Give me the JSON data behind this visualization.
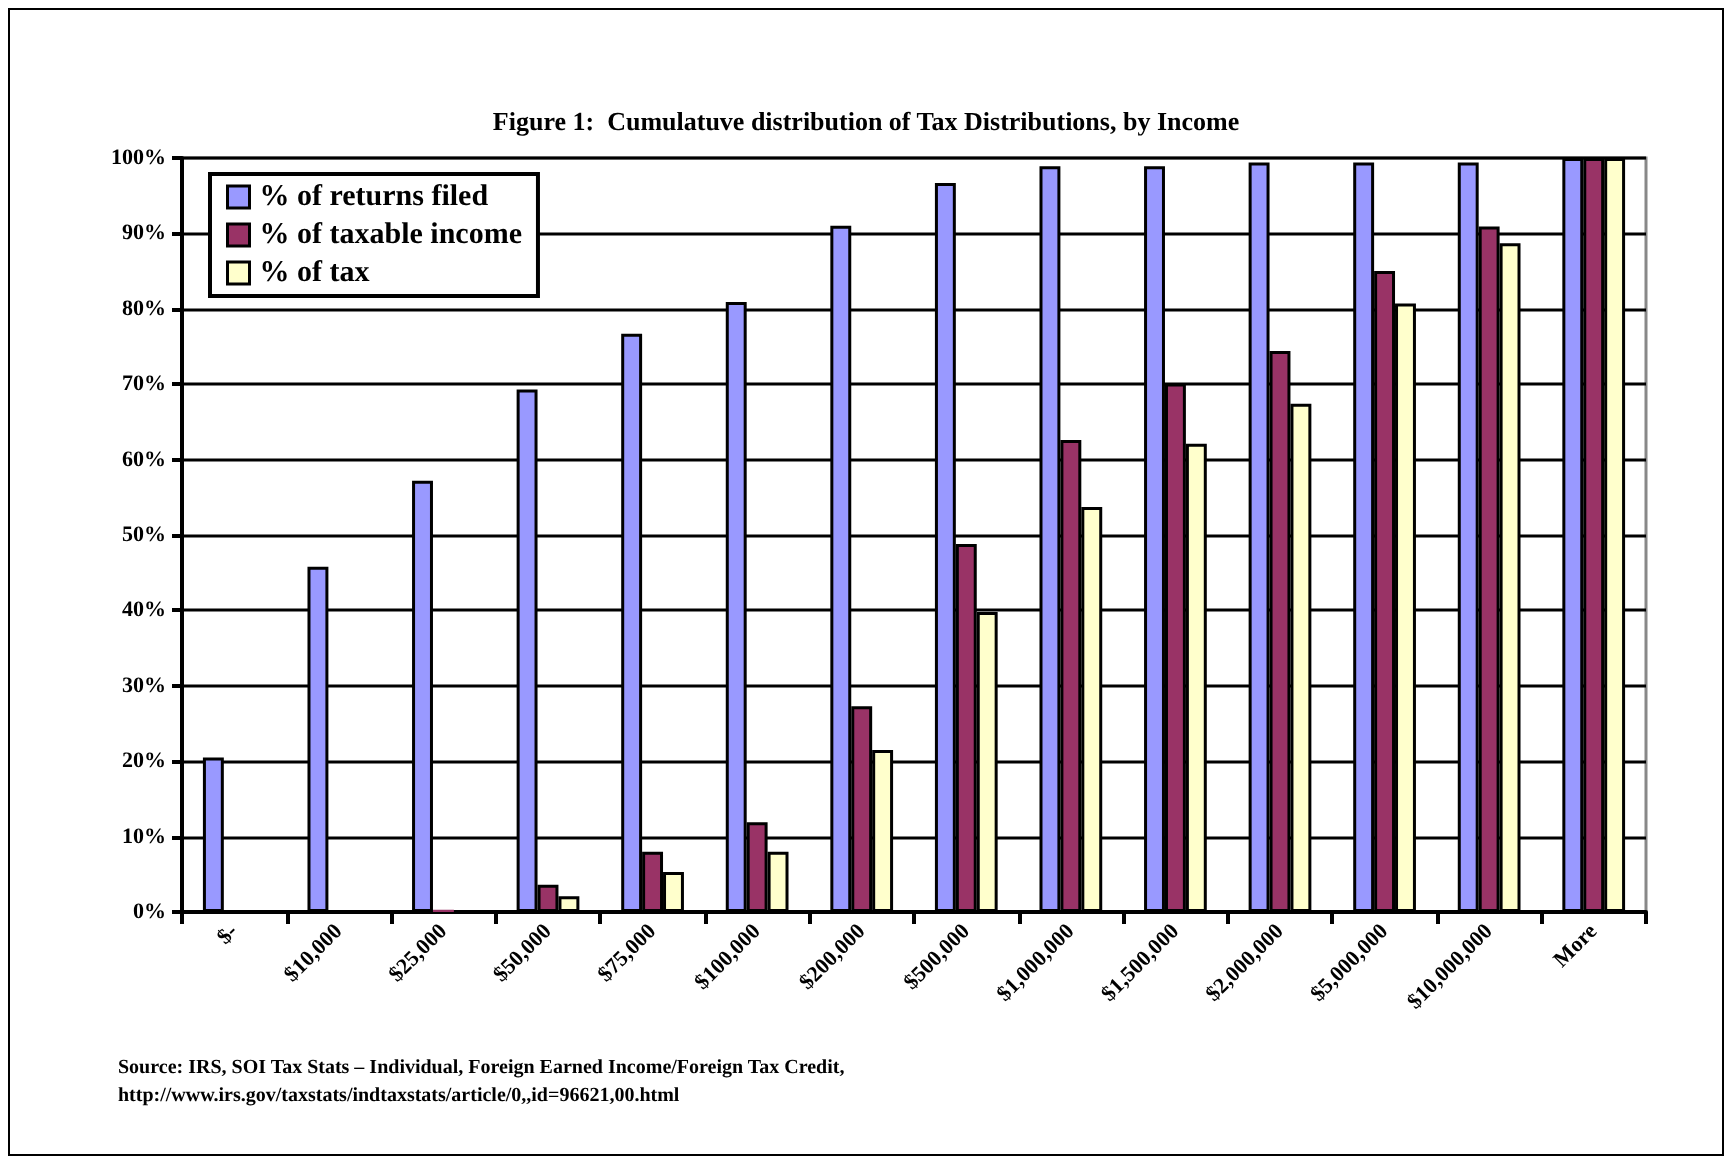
{
  "chart_data": {
    "type": "bar",
    "title": "Figure 1:  Cumulatuve distribution of Tax Distributions, by Income",
    "categories": [
      "$-",
      "$10,000",
      "$25,000",
      "$50,000",
      "$75,000",
      "$100,000",
      "$200,000",
      "$500,000",
      "$1,000,000",
      "$1,500,000",
      "$2,000,000",
      "$5,000,000",
      "$10,000,000",
      "More"
    ],
    "series": [
      {
        "name": "% of returns filed",
        "color": "#9999ff",
        "values": [
          20.5,
          45.8,
          57.2,
          69.3,
          76.7,
          80.9,
          91.0,
          96.7,
          98.9,
          98.9,
          99.4,
          99.4,
          99.4,
          100
        ]
      },
      {
        "name": "% of taxable income",
        "color": "#993366",
        "values": [
          0,
          0,
          0.3,
          3.6,
          8.0,
          11.9,
          27.3,
          48.8,
          62.6,
          70.1,
          74.4,
          85.0,
          90.9,
          100
        ]
      },
      {
        "name": "% of tax",
        "color": "#ffffcc",
        "values": [
          0,
          0,
          0,
          2.1,
          5.3,
          8.0,
          21.5,
          39.8,
          53.7,
          62.1,
          67.4,
          80.7,
          88.7,
          100
        ]
      }
    ],
    "ylim": [
      0,
      100
    ],
    "yticks": [
      {
        "value": 0,
        "label": "0%"
      },
      {
        "value": 10,
        "label": "10%"
      },
      {
        "value": 20,
        "label": "20%"
      },
      {
        "value": 30,
        "label": "30%"
      },
      {
        "value": 40,
        "label": "40%"
      },
      {
        "value": 50,
        "label": "50%"
      },
      {
        "value": 60,
        "label": "60%"
      },
      {
        "value": 70,
        "label": "70%"
      },
      {
        "value": 80,
        "label": "80%"
      },
      {
        "value": 90,
        "label": "90%"
      },
      {
        "value": 100,
        "label": "100%"
      }
    ],
    "grid": "y",
    "legend": "top left",
    "annotations": [
      "Source: IRS, SOI Tax Stats – Individual, Foreign Earned Income/Foreign Tax Credit,\nhttp://www.irs.gov/taxstats/indtaxstats/article/0,,id=96621,00.html"
    ]
  }
}
